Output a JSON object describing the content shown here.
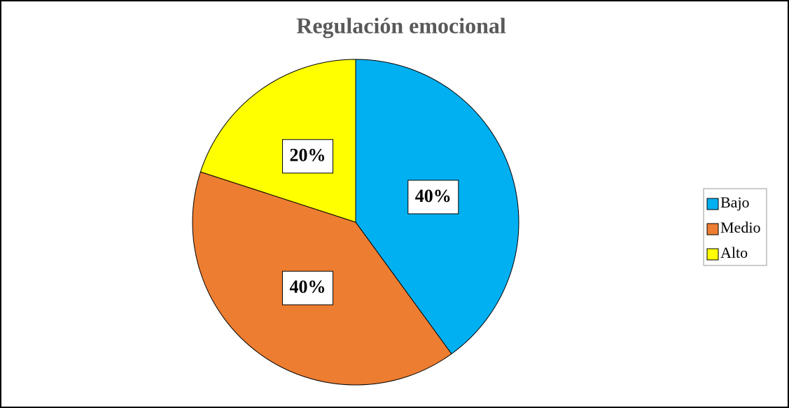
{
  "chart_data": {
    "type": "pie",
    "title": "Regulación emocional",
    "categories": [
      "Bajo",
      "Medio",
      "Alto"
    ],
    "values": [
      40,
      40,
      20
    ],
    "value_labels": [
      "40%",
      "40%",
      "20%"
    ],
    "colors": [
      "#00b0f0",
      "#ed7d31",
      "#ffff00"
    ],
    "legend": "right"
  }
}
